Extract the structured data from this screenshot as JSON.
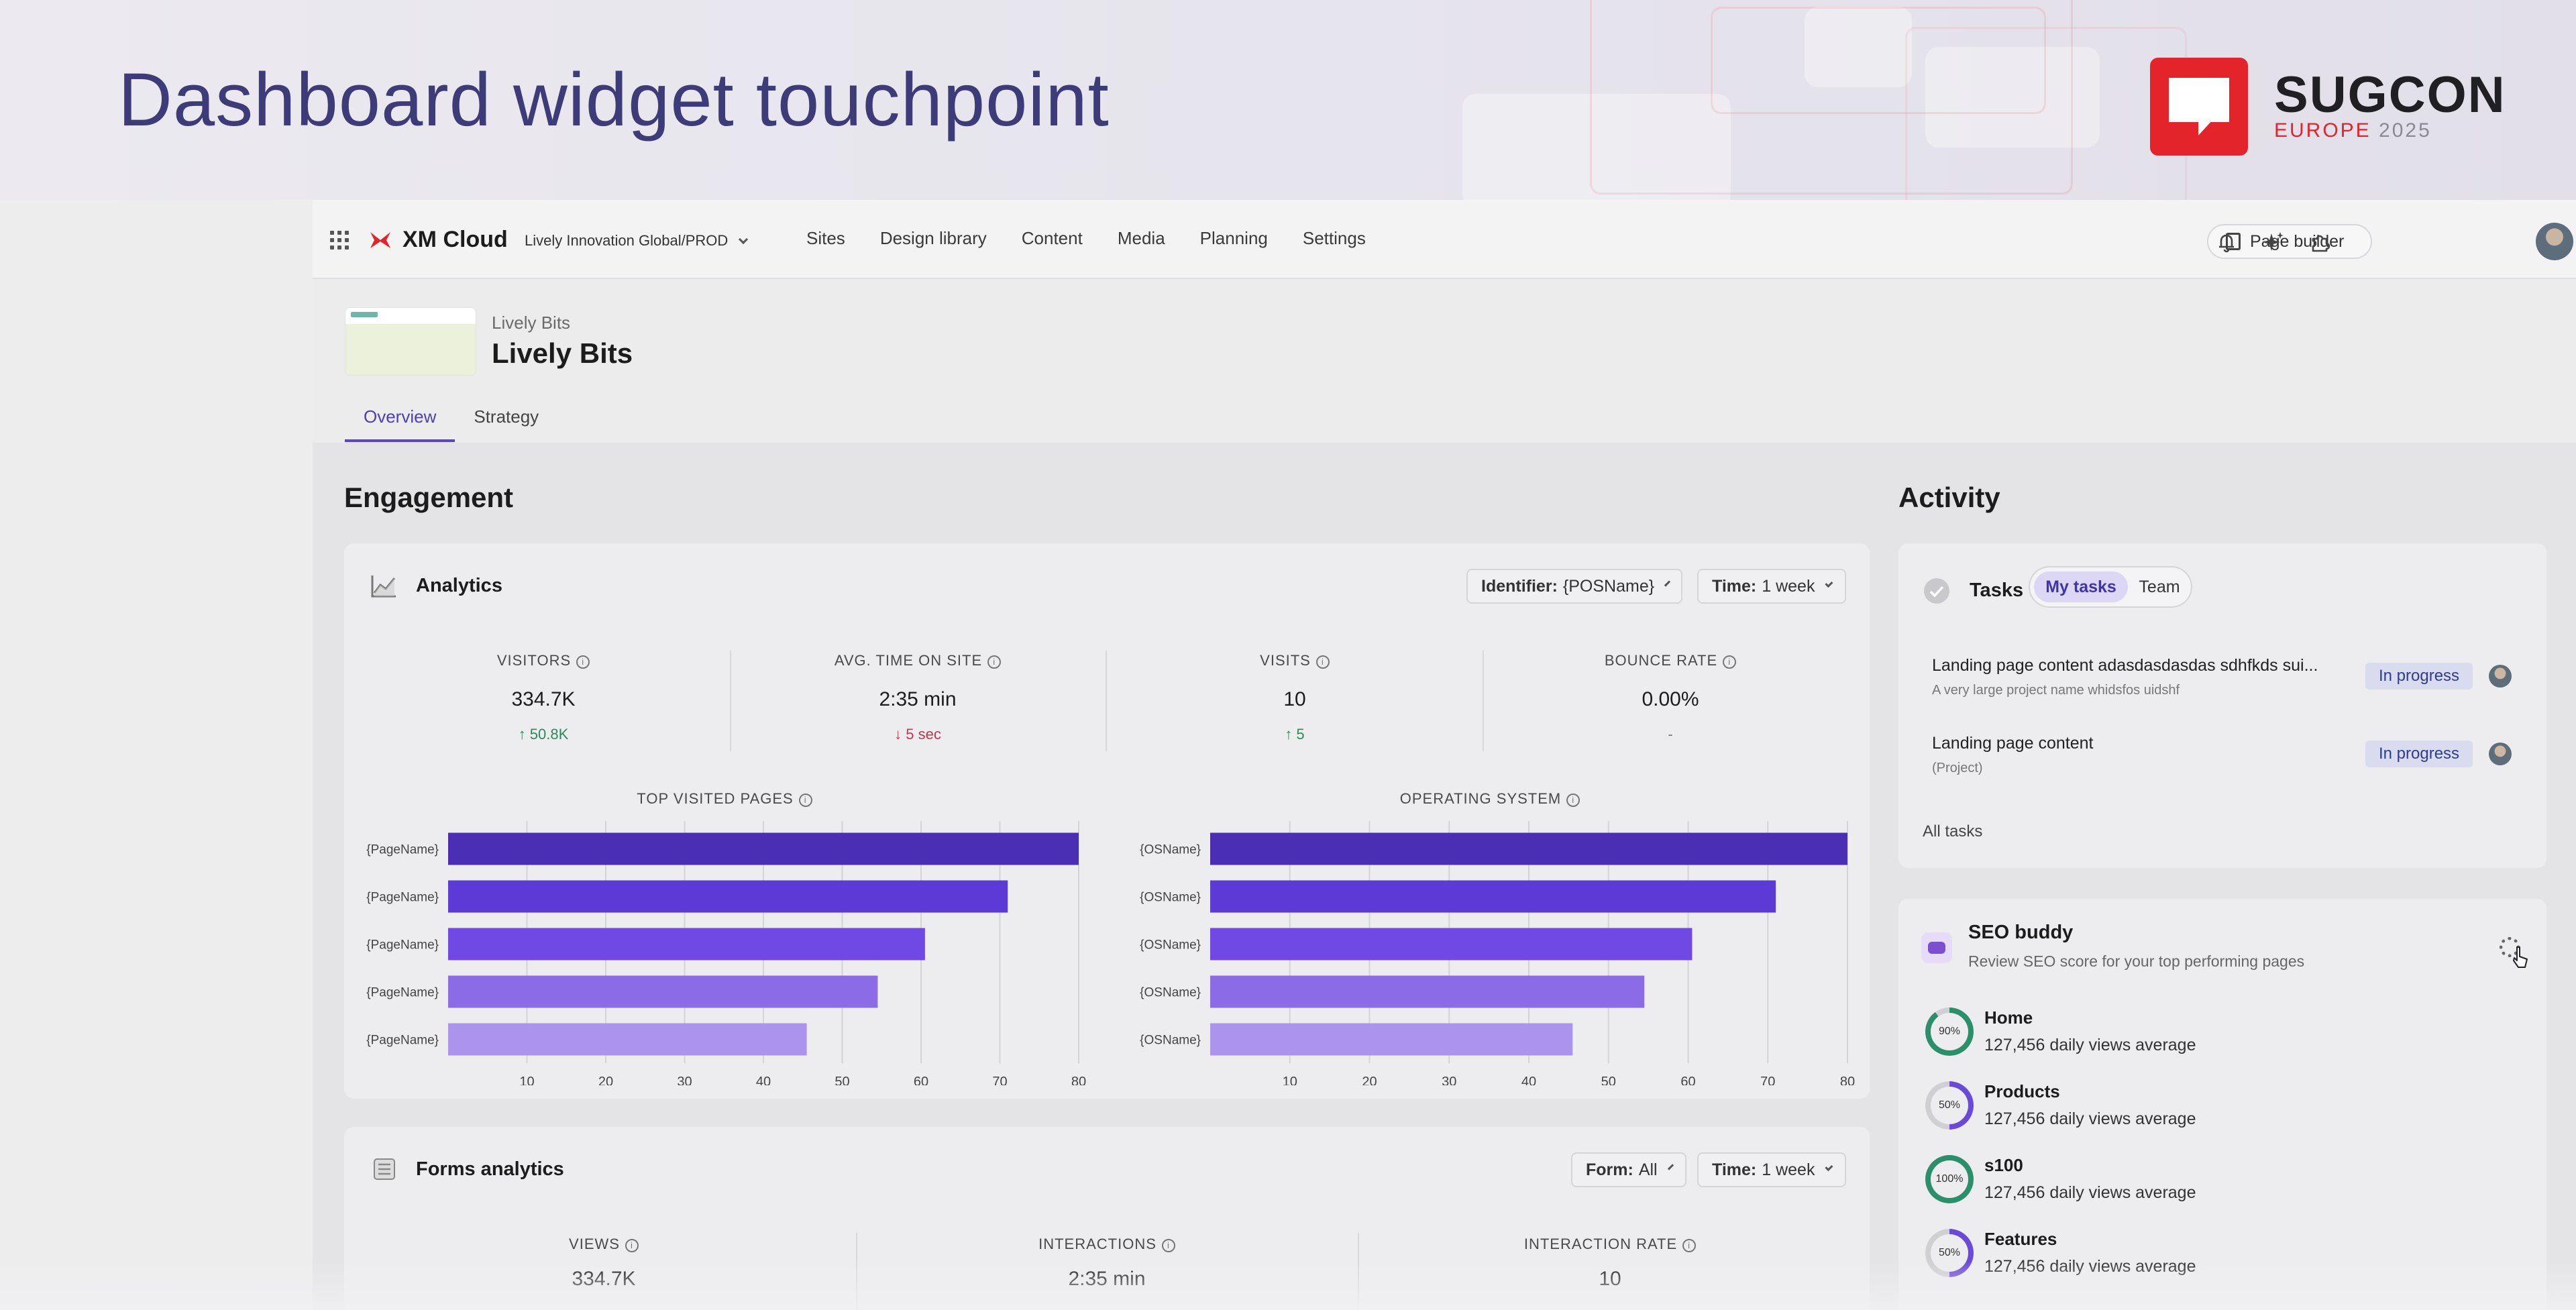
{
  "slide": {
    "title": "Dashboard widget touchpoint",
    "brand": {
      "name": "SUGCON",
      "sub_accent": "EUROPE",
      "sub_year": "2025",
      "color": "#e3242b"
    }
  },
  "topnav": {
    "product": "XM Cloud",
    "tenant": "Lively Innovation Global/PROD",
    "items": [
      "Sites",
      "Design library",
      "Content",
      "Media",
      "Planning",
      "Settings"
    ],
    "page_builder": "Page builder",
    "icons": [
      "bell-icon",
      "sparkle-icon",
      "extensions-icon"
    ]
  },
  "site": {
    "breadcrumb": "Lively Bits",
    "title": "Lively Bits",
    "thumb_brand": "LIVELY BITS"
  },
  "tabs": [
    "Overview",
    "Strategy"
  ],
  "engagement": {
    "title": "Engagement",
    "analytics": {
      "title": "Analytics",
      "identifier_label": "Identifier:",
      "identifier_value": "{POSName}",
      "time_label": "Time:",
      "time_value": "1 week",
      "metrics": [
        {
          "label": "VISITORS",
          "value": "334.7K",
          "delta": "↑ 50.8K",
          "trend": "up"
        },
        {
          "label": "AVG. TIME ON SITE",
          "value": "2:35 min",
          "delta": "↓ 5 sec",
          "trend": "down"
        },
        {
          "label": "VISITS",
          "value": "10",
          "delta": "↑ 5",
          "trend": "up"
        },
        {
          "label": "BOUNCE RATE",
          "value": "0.00%",
          "delta": "-",
          "trend": "neutral"
        }
      ]
    },
    "forms": {
      "title": "Forms analytics",
      "form_label": "Form:",
      "form_value": "All",
      "time_label": "Time:",
      "time_value": "1 week",
      "metrics": [
        {
          "label": "VIEWS",
          "value": "334.7K"
        },
        {
          "label": "INTERACTIONS",
          "value": "2:35 min"
        },
        {
          "label": "INTERACTION RATE",
          "value": "10"
        }
      ]
    }
  },
  "chart_data": [
    {
      "type": "bar",
      "orientation": "horizontal",
      "title": "TOP VISITED PAGES",
      "categories": [
        "{PageName}",
        "{PageName}",
        "{PageName}",
        "{PageName}",
        "{PageName}"
      ],
      "values": [
        80,
        71,
        60.5,
        54.5,
        45.5
      ],
      "xticks": [
        10,
        20,
        30,
        40,
        50,
        60,
        70,
        80
      ],
      "xlim": [
        0,
        80
      ],
      "colors": [
        "#4a2fb5",
        "#5b3ad6",
        "#7049e4",
        "#8b6be6",
        "#ab94ec"
      ]
    },
    {
      "type": "bar",
      "orientation": "horizontal",
      "title": "OPERATING SYSTEM",
      "categories": [
        "{OSName}",
        "{OSName}",
        "{OSName}",
        "{OSName}",
        "{OSName}"
      ],
      "values": [
        80,
        71,
        60.5,
        54.5,
        45.5
      ],
      "xticks": [
        10,
        20,
        30,
        40,
        50,
        60,
        70,
        80
      ],
      "xlim": [
        0,
        80
      ],
      "colors": [
        "#4a2fb5",
        "#5b3ad6",
        "#7049e4",
        "#8b6be6",
        "#ab94ec"
      ]
    }
  ],
  "activity": {
    "title": "Activity",
    "tasks": {
      "title": "Tasks",
      "toggle": [
        "My tasks",
        "Team"
      ],
      "items": [
        {
          "title": "Landing page content adasdasdasdas sdhfkds sui...",
          "sub": "A very large project name whidsfos uidshf",
          "status": "In progress"
        },
        {
          "title": "Landing page content",
          "sub": "(Project)",
          "status": "In progress"
        }
      ],
      "all_link": "All tasks"
    },
    "seo": {
      "title": "SEO buddy",
      "subtitle": "Review SEO score for your top performing pages",
      "pages": [
        {
          "name": "Home",
          "score": "90%",
          "views": "127,456 daily views average",
          "pct": 90,
          "color": "#2a8f6a"
        },
        {
          "name": "Products",
          "score": "50%",
          "views": "127,456 daily views average",
          "pct": 50,
          "color": "#6a4ad8"
        },
        {
          "name": "s100",
          "score": "100%",
          "views": "127,456 daily views average",
          "pct": 100,
          "color": "#2a8f6a"
        },
        {
          "name": "Features",
          "score": "50%",
          "views": "127,456 daily views average",
          "pct": 50,
          "color": "#6a4ad8"
        }
      ]
    }
  }
}
